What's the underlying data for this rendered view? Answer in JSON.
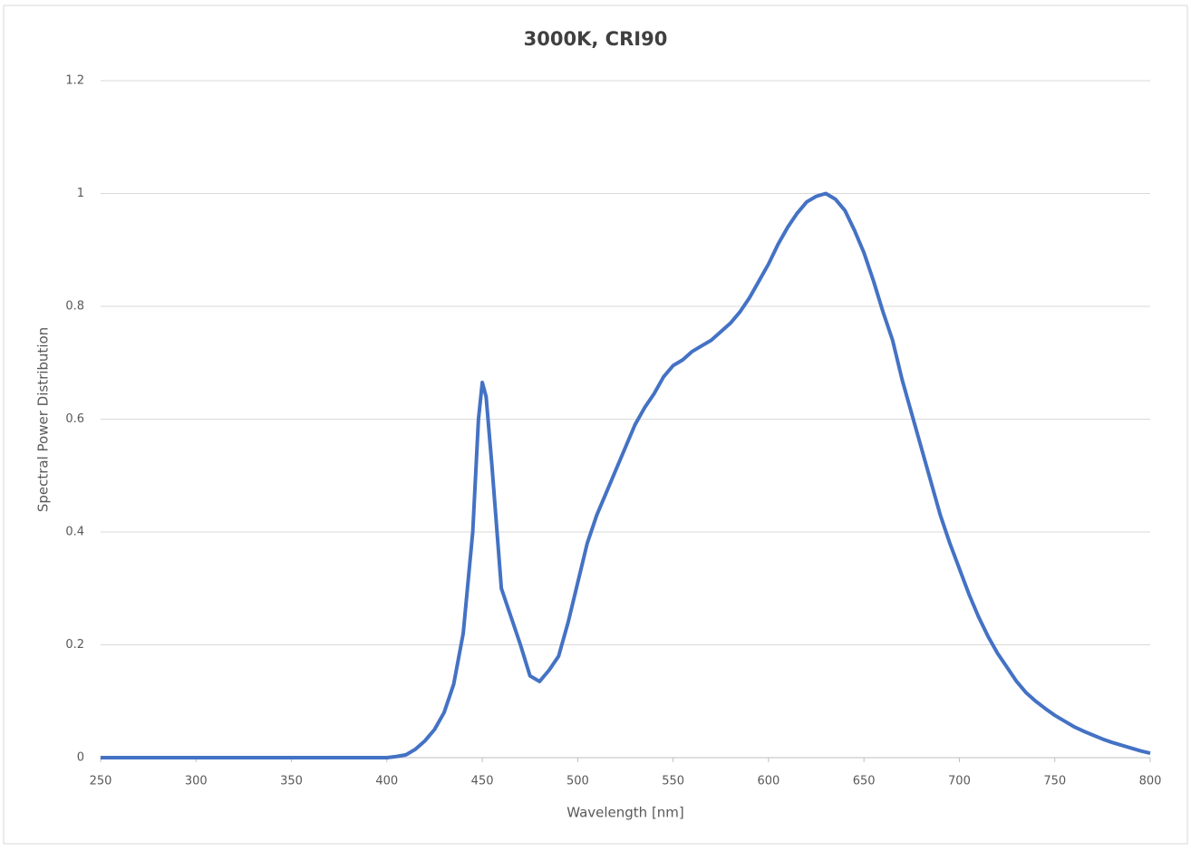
{
  "chart_data": {
    "type": "line",
    "title": "3000K, CRI90",
    "x_label": "Wavelength [nm]",
    "y_label": "Spectral Power Distribution",
    "x": [
      250,
      260,
      270,
      280,
      290,
      300,
      310,
      320,
      330,
      340,
      350,
      360,
      370,
      380,
      390,
      400,
      405,
      410,
      415,
      420,
      425,
      430,
      435,
      440,
      445,
      448,
      450,
      452,
      455,
      460,
      465,
      470,
      475,
      480,
      485,
      490,
      495,
      500,
      505,
      510,
      515,
      520,
      525,
      530,
      535,
      540,
      545,
      550,
      555,
      560,
      565,
      570,
      575,
      580,
      585,
      590,
      595,
      600,
      605,
      610,
      615,
      620,
      625,
      630,
      635,
      640,
      645,
      650,
      655,
      660,
      665,
      670,
      675,
      680,
      685,
      690,
      695,
      700,
      705,
      710,
      715,
      720,
      725,
      730,
      735,
      740,
      745,
      750,
      755,
      760,
      765,
      770,
      775,
      780,
      785,
      790,
      795,
      800
    ],
    "series": [
      {
        "name": "3000K, CRI90",
        "color": "#4472c4",
        "values": [
          0,
          0,
          0,
          0,
          0,
          0,
          0,
          0,
          0,
          0,
          0,
          0,
          0,
          0,
          0,
          0,
          0.002,
          0.005,
          0.015,
          0.03,
          0.05,
          0.08,
          0.13,
          0.22,
          0.4,
          0.6,
          0.665,
          0.64,
          0.52,
          0.3,
          0.25,
          0.2,
          0.145,
          0.135,
          0.155,
          0.18,
          0.24,
          0.31,
          0.38,
          0.43,
          0.47,
          0.51,
          0.55,
          0.59,
          0.62,
          0.645,
          0.675,
          0.695,
          0.705,
          0.72,
          0.73,
          0.74,
          0.755,
          0.77,
          0.79,
          0.815,
          0.845,
          0.875,
          0.91,
          0.94,
          0.965,
          0.985,
          0.995,
          1.0,
          0.99,
          0.97,
          0.935,
          0.895,
          0.845,
          0.79,
          0.74,
          0.67,
          0.61,
          0.55,
          0.49,
          0.43,
          0.38,
          0.335,
          0.29,
          0.25,
          0.215,
          0.185,
          0.16,
          0.135,
          0.115,
          0.1,
          0.087,
          0.075,
          0.065,
          0.055,
          0.047,
          0.04,
          0.033,
          0.027,
          0.022,
          0.017,
          0.012,
          0.008
        ]
      }
    ],
    "xlim": [
      250,
      800
    ],
    "xticks": [
      250,
      300,
      350,
      400,
      450,
      500,
      550,
      600,
      650,
      700,
      750,
      800
    ],
    "ylim": [
      0,
      1.2
    ],
    "yticks": [
      0,
      0.2,
      0.4,
      0.6,
      0.8,
      1,
      1.2
    ],
    "grid": true
  }
}
